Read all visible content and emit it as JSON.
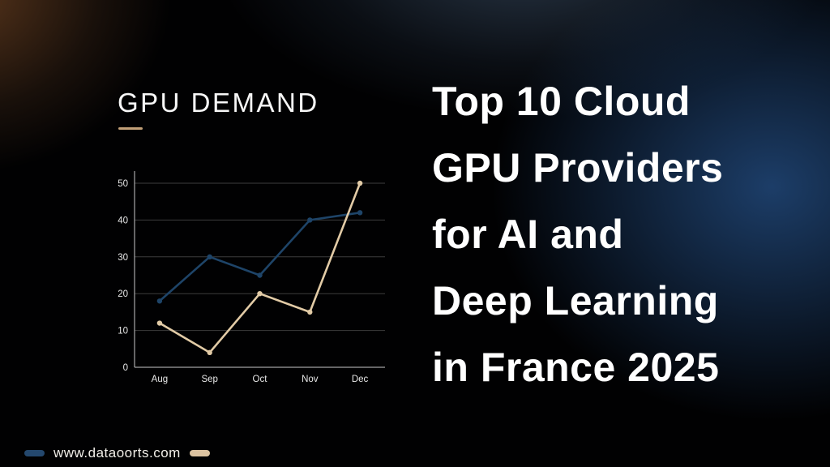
{
  "chart": {
    "title": "GPU DEMAND"
  },
  "chart_data": {
    "type": "line",
    "title": "GPU DEMAND",
    "categories": [
      "Aug",
      "Sep",
      "Oct",
      "Nov",
      "Dec"
    ],
    "series": [
      {
        "name": "blue-series",
        "color": "#1e4468",
        "values": [
          18,
          30,
          25,
          40,
          42
        ]
      },
      {
        "name": "tan-series",
        "color": "#e2cba6",
        "values": [
          12,
          4,
          20,
          15,
          50
        ]
      }
    ],
    "xlabel": "",
    "ylabel": "",
    "ylim": [
      0,
      50
    ],
    "yticks": [
      0,
      10,
      20,
      30,
      40,
      50
    ],
    "grid": true,
    "legend_position": "none"
  },
  "heading": {
    "lines": [
      "Top 10 Cloud",
      "GPU Providers",
      "for AI and",
      "Deep Learning",
      "in France 2025"
    ]
  },
  "footer": {
    "website": "www.dataoorts.com",
    "legend_blue_color": "#24486e",
    "legend_tan_color": "#dcc3a1"
  },
  "colors": {
    "accent_tan_underline": "#c2a078",
    "axis_line": "#c9c9c9",
    "gridline": "#3d3d3d",
    "heading_text": "#ffffff",
    "glow_blue": "#21487a",
    "glow_orange": "#9e5f30"
  }
}
